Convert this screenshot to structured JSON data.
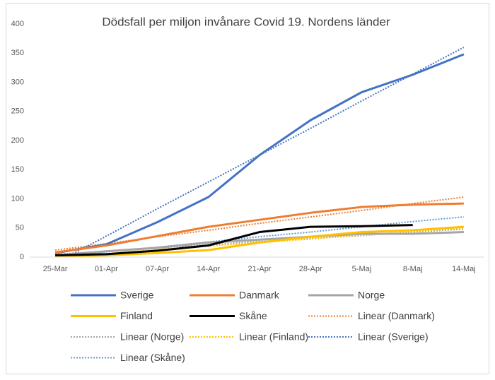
{
  "chart_data": {
    "type": "line",
    "title": "Dödsfall per miljon invånare Covid 19. Nordens länder",
    "categories": [
      "25-Mar",
      "01-Apr",
      "07-Apr",
      "14-Apr",
      "21-Apr",
      "28-Apr",
      "5-Maj",
      "8-Maj",
      "14-Maj"
    ],
    "ylim": [
      0,
      400
    ],
    "yticks": [
      0,
      50,
      100,
      150,
      200,
      250,
      300,
      350,
      400
    ],
    "grid": false,
    "series": [
      {
        "name": "Sverige",
        "color": "#4472c4",
        "values": [
          7,
          22,
          60,
          103,
          175,
          235,
          283,
          313,
          348
        ]
      },
      {
        "name": "Danmark",
        "color": "#ed7d31",
        "values": [
          8,
          20,
          36,
          52,
          64,
          76,
          86,
          90,
          92
        ]
      },
      {
        "name": "Norge",
        "color": "#a5a5a5",
        "values": [
          3,
          10,
          16,
          25,
          30,
          35,
          40,
          40,
          43
        ]
      },
      {
        "name": "Finland",
        "color": "#ffc000",
        "values": [
          1,
          3,
          7,
          12,
          25,
          35,
          43,
          46,
          52
        ]
      },
      {
        "name": "Skåne",
        "color": "#000000",
        "values": [
          3,
          5,
          11,
          20,
          43,
          52,
          53,
          55,
          null
        ]
      },
      {
        "name": "Linear (Danmark)",
        "color": "#ed7d31",
        "dashed": true,
        "values": [
          12,
          23,
          35,
          46,
          58,
          69,
          80,
          92,
          103
        ]
      },
      {
        "name": "Linear (Norge)",
        "color": "#a5a5a5",
        "dashed": true,
        "values": [
          5,
          10,
          16,
          21,
          27,
          32,
          37,
          43,
          48
        ]
      },
      {
        "name": "Linear (Finland)",
        "color": "#ffc000",
        "dashed": true,
        "values": [
          0,
          6,
          13,
          19,
          25,
          31,
          38,
          44,
          50
        ]
      },
      {
        "name": "Linear (Sverige)",
        "color": "#4472c4",
        "dashed": true,
        "values": [
          -10,
          36,
          83,
          129,
          175,
          221,
          268,
          314,
          360
        ]
      },
      {
        "name": "Linear (Skåne)",
        "color": "#5b9bd5",
        "dashed": true,
        "values": [
          0,
          9,
          17,
          26,
          35,
          43,
          52,
          61,
          69
        ]
      }
    ]
  }
}
